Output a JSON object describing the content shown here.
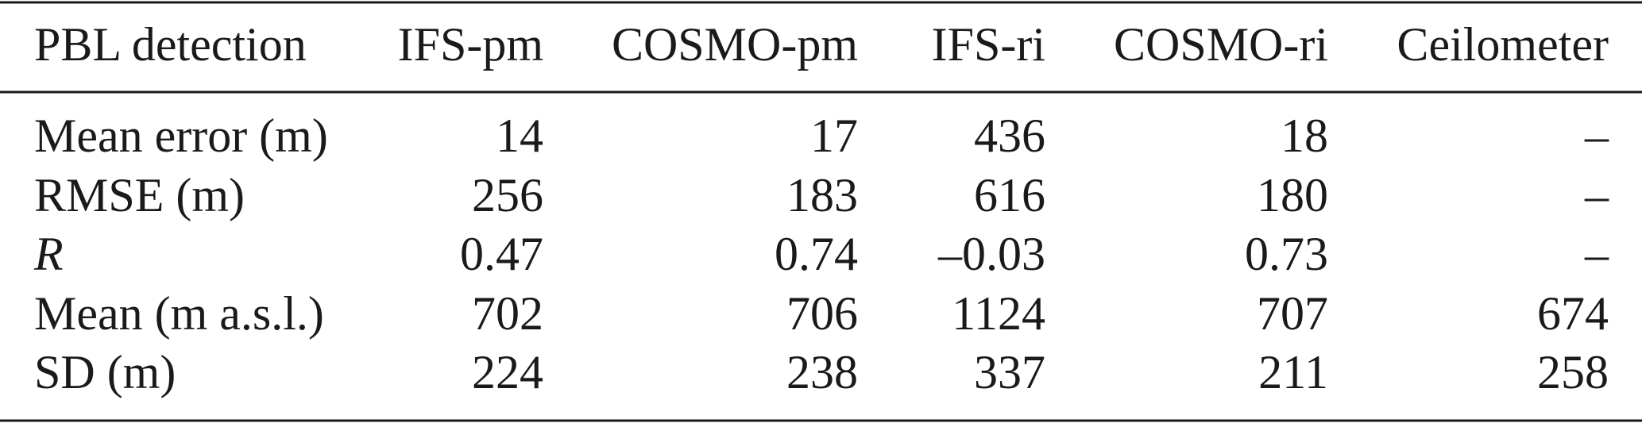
{
  "table": {
    "header": [
      "PBL detection",
      "IFS-pm",
      "COSMO-pm",
      "IFS-ri",
      "COSMO-ri",
      "Ceilometer"
    ],
    "rows": [
      [
        "Mean error (m)",
        "14",
        "17",
        "436",
        "18",
        "–"
      ],
      [
        "RMSE (m)",
        "256",
        "183",
        "616",
        "180",
        "–"
      ],
      [
        "R",
        "0.47",
        "0.74",
        "–0.03",
        "0.73",
        "–"
      ],
      [
        "Mean (m a.s.l.)",
        "702",
        "706",
        "1124",
        "707",
        "674"
      ],
      [
        "SD (m)",
        "224",
        "238",
        "337",
        "211",
        "258"
      ]
    ]
  }
}
